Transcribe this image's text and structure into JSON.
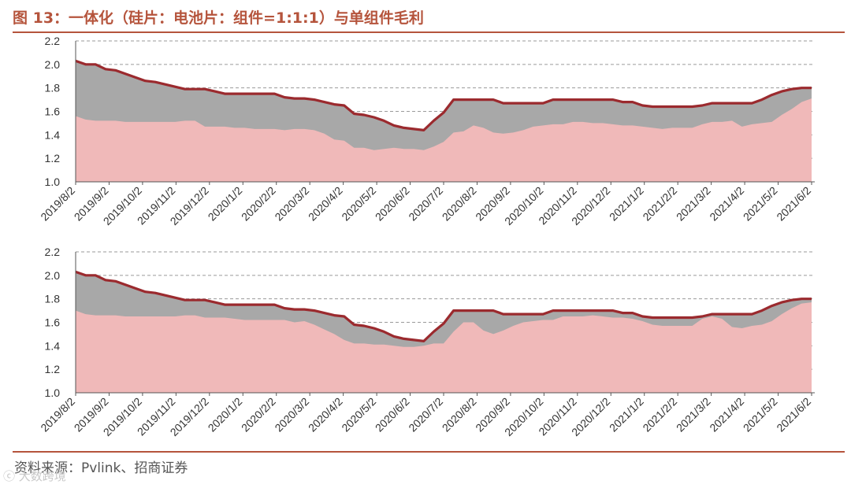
{
  "page": {
    "title": "图 13：一体化（硅片：电池片：组件=1:1:1）与单组件毛利",
    "source": "资料来源：Pvlink、招商证券",
    "watermark": "ⓒ 大数跨境"
  },
  "colors": {
    "accent": "#b5543c",
    "integrated_line": "#9b2a2e",
    "gray_area": "#a8a8a8",
    "pink_area": "#f0b9b9"
  },
  "chart_data": [
    {
      "type": "area",
      "title": "",
      "x_labels": [
        "2019/8/2",
        "2019/9/2",
        "2019/10/2",
        "2019/11/2",
        "2019/12/2",
        "2020/1/2",
        "2020/2/2",
        "2020/3/2",
        "2020/4/2",
        "2020/5/2",
        "2020/6/2",
        "2020/7/2",
        "2020/8/2",
        "2020/9/2",
        "2020/10/2",
        "2020/11/2",
        "2020/12/2",
        "2021/1/2",
        "2021/2/2",
        "2021/3/2",
        "2021/4/2",
        "2021/5/2",
        "2021/6/2"
      ],
      "yticks": [
        1.0,
        1.2,
        1.4,
        1.6,
        1.8,
        2.0,
        2.2
      ],
      "ylim": [
        1.0,
        2.2
      ],
      "grid": "dashed horizontal",
      "series": [
        {
          "role": "line",
          "values": [
            2.03,
            2.0,
            2.0,
            1.96,
            1.95,
            1.92,
            1.89,
            1.86,
            1.85,
            1.83,
            1.81,
            1.79,
            1.79,
            1.79,
            1.77,
            1.75,
            1.75,
            1.75,
            1.75,
            1.75,
            1.75,
            1.72,
            1.71,
            1.71,
            1.7,
            1.68,
            1.66,
            1.65,
            1.58,
            1.57,
            1.55,
            1.52,
            1.48,
            1.46,
            1.45,
            1.44,
            1.52,
            1.59,
            1.7,
            1.7,
            1.7,
            1.7,
            1.7,
            1.67,
            1.67,
            1.67,
            1.67,
            1.67,
            1.7,
            1.7,
            1.7,
            1.7,
            1.7,
            1.7,
            1.7,
            1.68,
            1.68,
            1.65,
            1.64,
            1.64,
            1.64,
            1.64,
            1.64,
            1.65,
            1.67,
            1.67,
            1.67,
            1.67,
            1.67,
            1.7,
            1.74,
            1.77,
            1.79,
            1.8,
            1.8
          ]
        },
        {
          "role": "pink",
          "values": [
            1.56,
            1.53,
            1.52,
            1.52,
            1.52,
            1.51,
            1.51,
            1.51,
            1.51,
            1.51,
            1.51,
            1.52,
            1.52,
            1.47,
            1.47,
            1.47,
            1.46,
            1.46,
            1.45,
            1.45,
            1.45,
            1.44,
            1.45,
            1.45,
            1.44,
            1.41,
            1.36,
            1.35,
            1.29,
            1.29,
            1.27,
            1.28,
            1.29,
            1.28,
            1.28,
            1.27,
            1.3,
            1.34,
            1.42,
            1.43,
            1.48,
            1.46,
            1.42,
            1.41,
            1.42,
            1.44,
            1.47,
            1.48,
            1.49,
            1.49,
            1.51,
            1.51,
            1.5,
            1.5,
            1.49,
            1.48,
            1.48,
            1.47,
            1.46,
            1.45,
            1.46,
            1.46,
            1.46,
            1.49,
            1.51,
            1.51,
            1.52,
            1.47,
            1.49,
            1.5,
            1.51,
            1.57,
            1.62,
            1.68,
            1.71
          ]
        }
      ]
    },
    {
      "type": "area",
      "title": "",
      "x_labels": [
        "2019/8/2",
        "2019/9/2",
        "2019/10/2",
        "2019/11/2",
        "2019/12/2",
        "2020/1/2",
        "2020/2/2",
        "2020/3/2",
        "2020/4/2",
        "2020/5/2",
        "2020/6/2",
        "2020/7/2",
        "2020/8/2",
        "2020/9/2",
        "2020/10/2",
        "2020/11/2",
        "2020/12/2",
        "2021/1/2",
        "2021/2/2",
        "2021/3/2",
        "2021/4/2",
        "2021/5/2",
        "2021/6/2"
      ],
      "yticks": [
        1.0,
        1.2,
        1.4,
        1.6,
        1.8,
        2.0,
        2.2
      ],
      "ylim": [
        1.0,
        2.2
      ],
      "grid": "dashed horizontal",
      "series": [
        {
          "role": "line",
          "values": [
            2.03,
            2.0,
            2.0,
            1.96,
            1.95,
            1.92,
            1.89,
            1.86,
            1.85,
            1.83,
            1.81,
            1.79,
            1.79,
            1.79,
            1.77,
            1.75,
            1.75,
            1.75,
            1.75,
            1.75,
            1.75,
            1.72,
            1.71,
            1.71,
            1.7,
            1.68,
            1.66,
            1.65,
            1.58,
            1.57,
            1.55,
            1.52,
            1.48,
            1.46,
            1.45,
            1.44,
            1.52,
            1.59,
            1.7,
            1.7,
            1.7,
            1.7,
            1.7,
            1.67,
            1.67,
            1.67,
            1.67,
            1.67,
            1.7,
            1.7,
            1.7,
            1.7,
            1.7,
            1.7,
            1.7,
            1.68,
            1.68,
            1.65,
            1.64,
            1.64,
            1.64,
            1.64,
            1.64,
            1.65,
            1.67,
            1.67,
            1.67,
            1.67,
            1.67,
            1.7,
            1.74,
            1.77,
            1.79,
            1.8,
            1.8
          ]
        },
        {
          "role": "pink",
          "values": [
            1.7,
            1.67,
            1.66,
            1.66,
            1.66,
            1.65,
            1.65,
            1.65,
            1.65,
            1.65,
            1.65,
            1.66,
            1.66,
            1.64,
            1.64,
            1.64,
            1.63,
            1.62,
            1.62,
            1.62,
            1.62,
            1.62,
            1.6,
            1.61,
            1.58,
            1.54,
            1.5,
            1.45,
            1.42,
            1.42,
            1.41,
            1.41,
            1.4,
            1.39,
            1.39,
            1.4,
            1.42,
            1.42,
            1.52,
            1.6,
            1.6,
            1.53,
            1.5,
            1.53,
            1.57,
            1.6,
            1.61,
            1.62,
            1.62,
            1.65,
            1.65,
            1.65,
            1.66,
            1.65,
            1.64,
            1.64,
            1.63,
            1.61,
            1.58,
            1.57,
            1.57,
            1.57,
            1.57,
            1.63,
            1.65,
            1.63,
            1.56,
            1.55,
            1.57,
            1.58,
            1.61,
            1.67,
            1.72,
            1.76,
            1.77
          ]
        }
      ]
    }
  ]
}
